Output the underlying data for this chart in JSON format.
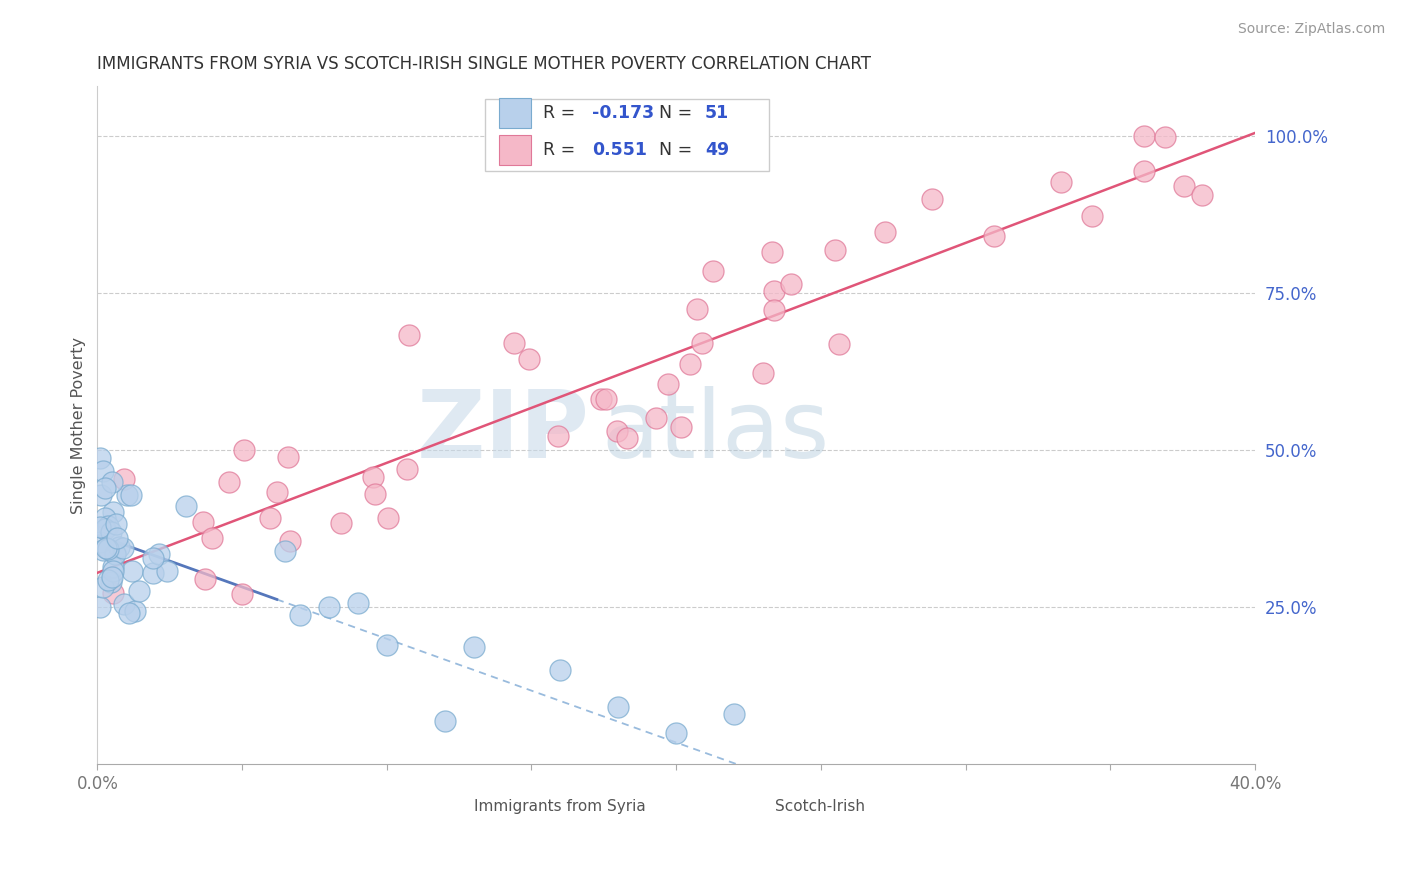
{
  "title": "IMMIGRANTS FROM SYRIA VS SCOTCH-IRISH SINGLE MOTHER POVERTY CORRELATION CHART",
  "source": "Source: ZipAtlas.com",
  "ylabel": "Single Mother Poverty",
  "ytick_labels": [
    "25.0%",
    "50.0%",
    "75.0%",
    "100.0%"
  ],
  "ytick_vals": [
    0.25,
    0.5,
    0.75,
    1.0
  ],
  "xmin": 0.0,
  "xmax": 0.4,
  "ymin": 0.0,
  "ymax": 1.08,
  "series1_color": "#b8d0eb",
  "series1_edge": "#7aabcf",
  "series1_line_solid": "#5577bb",
  "series1_line_dash": "#99bbdd",
  "series2_color": "#f5b8c8",
  "series2_edge": "#e07898",
  "series2_line": "#e05578",
  "watermark_zip": "ZIP",
  "watermark_atlas": "atlas",
  "background_color": "#ffffff",
  "grid_color": "#cccccc",
  "title_color": "#333333",
  "source_color": "#999999",
  "ytick_color": "#4466cc",
  "xtick_color": "#777777",
  "legend_r1": "-0.173",
  "legend_n1": "51",
  "legend_r2": "0.551",
  "legend_n2": "49",
  "blue_line_solid_xmax": 0.062,
  "pink_line_intercept": 0.305,
  "pink_line_slope": 1.75,
  "blue_line_intercept": 0.365,
  "blue_line_slope": -1.65
}
